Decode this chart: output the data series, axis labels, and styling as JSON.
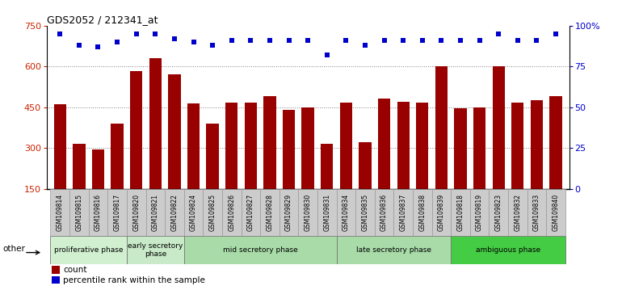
{
  "title": "GDS2052 / 212341_at",
  "samples": [
    "GSM109814",
    "GSM109815",
    "GSM109816",
    "GSM109817",
    "GSM109820",
    "GSM109821",
    "GSM109822",
    "GSM109824",
    "GSM109825",
    "GSM109826",
    "GSM109827",
    "GSM109828",
    "GSM109829",
    "GSM109830",
    "GSM109831",
    "GSM109834",
    "GSM109835",
    "GSM109836",
    "GSM109837",
    "GSM109838",
    "GSM109839",
    "GSM109818",
    "GSM109819",
    "GSM109823",
    "GSM109832",
    "GSM109833",
    "GSM109840"
  ],
  "counts": [
    460,
    315,
    295,
    390,
    582,
    632,
    572,
    465,
    390,
    468,
    467,
    490,
    440,
    450,
    315,
    468,
    320,
    482,
    470,
    468,
    600,
    447,
    450,
    600,
    468,
    475,
    490
  ],
  "percentiles": [
    95,
    88,
    87,
    90,
    95,
    95,
    92,
    90,
    88,
    91,
    91,
    91,
    91,
    91,
    82,
    91,
    88,
    91,
    91,
    91,
    91,
    91,
    91,
    95,
    91,
    91,
    95
  ],
  "bar_color": "#990000",
  "dot_color": "#0000cc",
  "ylim_left": [
    150,
    750
  ],
  "ylim_right": [
    0,
    100
  ],
  "yticks_left": [
    150,
    300,
    450,
    600,
    750
  ],
  "yticks_right": [
    0,
    25,
    50,
    75,
    100
  ],
  "grid_values": [
    300,
    450,
    600
  ],
  "phases": [
    {
      "label": "proliferative phase",
      "start": 0,
      "end": 3,
      "color": "#d0f0d0"
    },
    {
      "label": "early secretory\nphase",
      "start": 4,
      "end": 6,
      "color": "#c8eac8"
    },
    {
      "label": "mid secretory phase",
      "start": 7,
      "end": 14,
      "color": "#a8dba8"
    },
    {
      "label": "late secretory phase",
      "start": 15,
      "end": 20,
      "color": "#a8dba8"
    },
    {
      "label": "ambiguous phase",
      "start": 21,
      "end": 26,
      "color": "#44cc44"
    }
  ],
  "legend_count_label": "count",
  "legend_pct_label": "percentile rank within the sample",
  "other_label": "other",
  "bg_color": "#ffffff",
  "left_axis_color": "#cc2200",
  "right_axis_color": "#0000cc",
  "tick_bg_color": "#cccccc",
  "tick_border_color": "#999999"
}
